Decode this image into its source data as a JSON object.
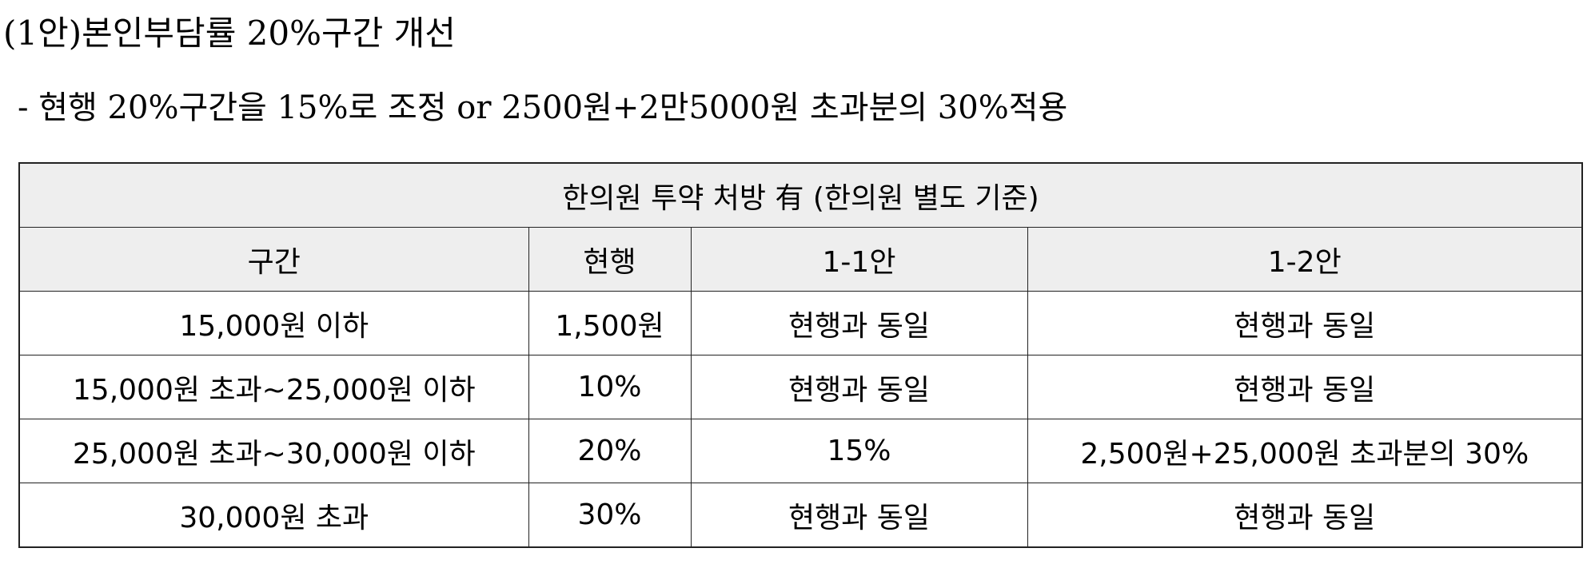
{
  "title": "(1안)본인부담률 20%구간 개선",
  "subtitle": "- 현행 20%구간을 15%로 조정 or 2500원+2만5000원 초과분의 30%적용",
  "table": {
    "caption": "한의원 투약 처방 有 (한의원 별도 기준)",
    "headers": [
      "구간",
      "현행",
      "1-1안",
      "1-2안"
    ],
    "rows": [
      [
        "15,000원 이하",
        "1,500원",
        "현행과 동일",
        "현행과 동일"
      ],
      [
        "15,000원 초과~25,000원 이하",
        "10%",
        "현행과 동일",
        "현행과 동일"
      ],
      [
        "25,000원 초과~30,000원 이하",
        "20%",
        "15%",
        "2,500원+25,000원 초과분의 30%"
      ],
      [
        "30,000원 초과",
        "30%",
        "현행과 동일",
        "현행과 동일"
      ]
    ]
  },
  "colors": {
    "header_bg": "#eeeeee",
    "border": "#222222"
  }
}
